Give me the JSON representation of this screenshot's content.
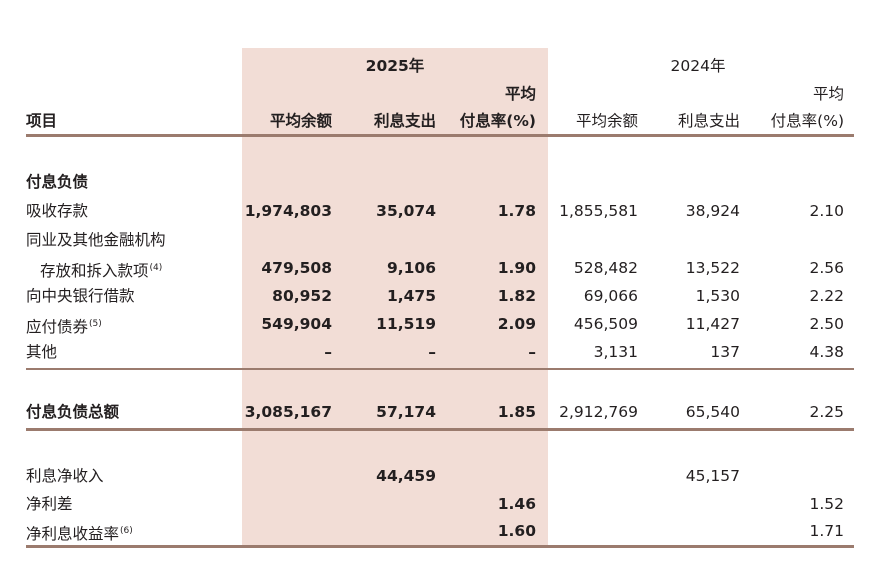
{
  "header": {
    "year_2025": "2025年",
    "year_2024": "2024年",
    "col_item": "项目",
    "col_avg_balance": "平均余额",
    "col_interest_expense": "利息支出",
    "col_avg_rate_line1": "平均",
    "col_avg_rate_line2": "付息率(%)"
  },
  "section_title": "付息负债",
  "rows": [
    {
      "label": "吸收存款",
      "footnote": "",
      "y2025": {
        "balance": "1,974,803",
        "expense": "35,074",
        "rate": "1.78"
      },
      "y2024": {
        "balance": "1,855,581",
        "expense": "38,924",
        "rate": "2.10"
      }
    },
    {
      "label_line1": "同业及其他金融机构",
      "label": "存放和拆入款项",
      "footnote": "(4)",
      "y2025": {
        "balance": "479,508",
        "expense": "9,106",
        "rate": "1.90"
      },
      "y2024": {
        "balance": "528,482",
        "expense": "13,522",
        "rate": "2.56"
      }
    },
    {
      "label": "向中央银行借款",
      "footnote": "",
      "y2025": {
        "balance": "80,952",
        "expense": "1,475",
        "rate": "1.82"
      },
      "y2024": {
        "balance": "69,066",
        "expense": "1,530",
        "rate": "2.22"
      }
    },
    {
      "label": "应付债券",
      "footnote": "(5)",
      "y2025": {
        "balance": "549,904",
        "expense": "11,519",
        "rate": "2.09"
      },
      "y2024": {
        "balance": "456,509",
        "expense": "11,427",
        "rate": "2.50"
      }
    },
    {
      "label": "其他",
      "footnote": "",
      "y2025": {
        "balance": "–",
        "expense": "–",
        "rate": "–"
      },
      "y2024": {
        "balance": "3,131",
        "expense": "137",
        "rate": "4.38"
      }
    }
  ],
  "total": {
    "label": "付息负债总额",
    "y2025": {
      "balance": "3,085,167",
      "expense": "57,174",
      "rate": "1.85"
    },
    "y2024": {
      "balance": "2,912,769",
      "expense": "65,540",
      "rate": "2.25"
    }
  },
  "summary": [
    {
      "label": "利息净收入",
      "footnote": "",
      "v2025": "44,459",
      "v2024": "45,157"
    },
    {
      "label": "净利差",
      "footnote": "",
      "v2025": "1.46",
      "v2024": "1.52"
    },
    {
      "label": "净利息收益率",
      "footnote": "(6)",
      "v2025": "1.60",
      "v2024": "1.71"
    }
  ]
}
